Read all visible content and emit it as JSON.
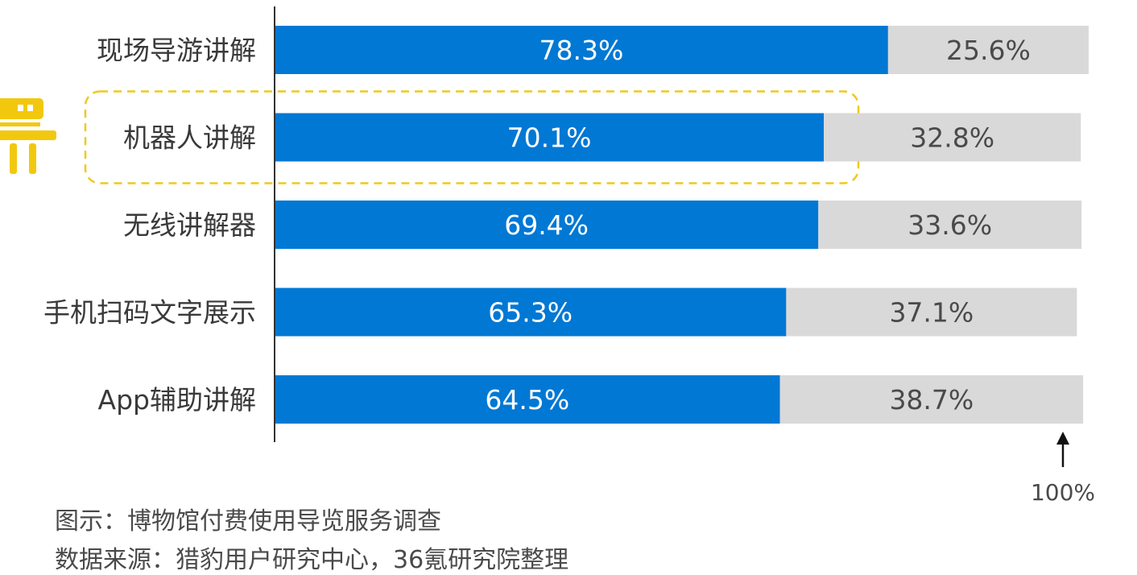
{
  "colors": {
    "blue": "#0078d4",
    "gray": "#d9d9d9",
    "highlight": "#f0c91c",
    "robot": "#f2c80f",
    "axis": "#333333"
  },
  "icons": {
    "robot": "robot-icon",
    "arrow": "up-arrow-icon"
  },
  "chart_data": {
    "type": "bar",
    "orientation": "horizontal",
    "stacked": true,
    "categories": [
      "现场导游讲解",
      "机器人讲解",
      "无线讲解器",
      "手机扫码文字展示",
      "App辅助讲解"
    ],
    "series": [
      {
        "values": [
          78.3,
          70.1,
          69.4,
          65.3,
          64.5
        ],
        "labels": [
          "78.3%",
          "70.1%",
          "69.4%",
          "65.3%",
          "64.5%"
        ]
      },
      {
        "values": [
          25.6,
          32.8,
          33.6,
          37.1,
          38.7
        ],
        "labels": [
          "25.6%",
          "32.8%",
          "33.6%",
          "37.1%",
          "38.7%"
        ]
      }
    ],
    "reference_label": "100%",
    "highlighted_category": "机器人讲解",
    "xlim": [
      0,
      104.5
    ],
    "legend": "none",
    "grid": false
  },
  "notes": [
    "图示：博物馆付费使用导览服务调查",
    "数据来源：猎豹用户研究中心，36氪研究院整理"
  ]
}
